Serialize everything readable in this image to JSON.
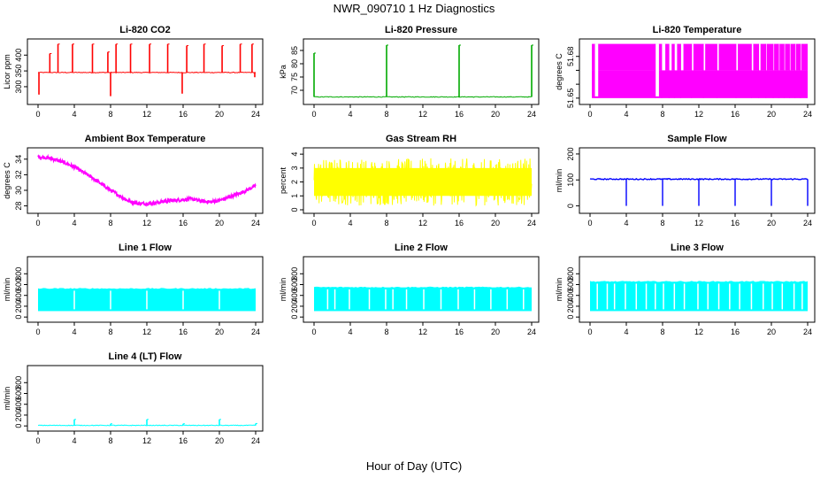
{
  "figure": {
    "title": "NWR_090710  1 Hz Diagnostics",
    "xlabel": "Hour of Day (UTC)"
  },
  "chart_data": [
    {
      "type": "line",
      "title": "Li-820 CO2",
      "ylabel": "Licor ppm",
      "color": "#ff0000",
      "xlim": [
        0,
        24
      ],
      "ylim": [
        255,
        440
      ],
      "xticks": [
        "0",
        "4",
        "8",
        "12",
        "16",
        "20",
        "24"
      ],
      "yticks": [
        300,
        350,
        400
      ],
      "baseline": 345,
      "spikes_up": [
        [
          1.3,
          405
        ],
        [
          2.2,
          435
        ],
        [
          3.8,
          435
        ],
        [
          6.0,
          435
        ],
        [
          7.7,
          410
        ],
        [
          8.6,
          435
        ],
        [
          10.2,
          435
        ],
        [
          12.3,
          435
        ],
        [
          14.3,
          435
        ],
        [
          16.4,
          430
        ],
        [
          18.3,
          435
        ],
        [
          20.3,
          430
        ],
        [
          22.3,
          435
        ],
        [
          23.6,
          435
        ]
      ],
      "spikes_down": [
        [
          0.1,
          275
        ],
        [
          8.0,
          270
        ],
        [
          15.9,
          278
        ],
        [
          23.9,
          330
        ]
      ]
    },
    {
      "type": "line",
      "title": "Li-820 Pressure",
      "ylabel": "kPa",
      "color": "#00aa00",
      "xlim": [
        0,
        24
      ],
      "ylim": [
        66,
        88
      ],
      "xticks": [
        "0",
        "4",
        "8",
        "12",
        "16",
        "20",
        "24"
      ],
      "yticks": [
        70,
        75,
        80,
        85
      ],
      "baseline": 67.5,
      "spikes_up": [
        [
          0.0,
          84
        ],
        [
          8.0,
          87
        ],
        [
          16.0,
          87
        ],
        [
          24.0,
          87
        ]
      ],
      "spikes_down": []
    },
    {
      "type": "line",
      "title": "Li-820 Temperature",
      "ylabel": "degrees C",
      "color": "#ff00ff",
      "xlim": [
        0,
        24
      ],
      "ylim": [
        51.648,
        51.69
      ],
      "xticks": [
        "0",
        "4",
        "8",
        "12",
        "16",
        "20",
        "24"
      ],
      "yticks": [
        51.65,
        51.66,
        51.67,
        51.68
      ],
      "y_label_indices": [
        0,
        3
      ],
      "level_low": 51.65,
      "level_mid": 51.67,
      "level_high": 51.689,
      "band_start": 0.2,
      "band_end": 24,
      "full_until": 7.2,
      "gaps": [
        [
          0.5,
          0.9
        ],
        [
          7.2,
          7.6
        ],
        [
          7.9,
          8.3
        ],
        [
          8.7,
          9.0
        ],
        [
          9.3,
          9.6
        ],
        [
          10.0,
          10.3
        ],
        [
          11.2,
          11.4
        ],
        [
          12.5,
          12.7
        ],
        [
          14.0,
          14.2
        ],
        [
          16.1,
          16.3
        ],
        [
          17.8,
          18.0
        ],
        [
          18.6,
          18.8
        ],
        [
          19.4,
          19.5
        ],
        [
          20.2,
          20.3
        ],
        [
          20.8,
          20.9
        ],
        [
          21.4,
          21.5
        ],
        [
          22.0,
          22.1
        ],
        [
          22.6,
          22.7
        ],
        [
          23.2,
          23.3
        ]
      ]
    },
    {
      "type": "line",
      "title": "Ambient Box Temperature",
      "ylabel": "degrees C",
      "color": "#ff00ff",
      "xlim": [
        0,
        24
      ],
      "ylim": [
        27.5,
        35
      ],
      "xticks": [
        "0",
        "4",
        "8",
        "12",
        "16",
        "20",
        "24"
      ],
      "yticks": [
        28,
        30,
        32,
        34
      ],
      "x": [
        0,
        1,
        2,
        3,
        4,
        5,
        6,
        7,
        8,
        9,
        10,
        11,
        12,
        13,
        14,
        15,
        16,
        17,
        18,
        19,
        20,
        21,
        22,
        23,
        24
      ],
      "y": [
        34.3,
        34.2,
        33.9,
        33.5,
        33.0,
        32.3,
        31.6,
        30.8,
        30.0,
        29.3,
        28.6,
        28.3,
        28.3,
        28.4,
        28.6,
        28.7,
        28.8,
        28.9,
        28.6,
        28.5,
        28.7,
        29.1,
        29.5,
        30.0,
        30.6
      ],
      "noise": 0.45
    },
    {
      "type": "line",
      "title": "Gas Stream RH",
      "ylabel": "percent",
      "color": "#ffff00",
      "xlim": [
        0,
        24
      ],
      "ylim": [
        0,
        4.2
      ],
      "xticks": [
        "0",
        "4",
        "8",
        "12",
        "16",
        "20",
        "24"
      ],
      "yticks": [
        0,
        1,
        2,
        3,
        4
      ],
      "band_low": 0.3,
      "band_high": 3.7,
      "core_low": 1.0,
      "core_high": 3.0
    },
    {
      "type": "line",
      "title": "Sample Flow",
      "ylabel": "ml/min",
      "color": "#0000ff",
      "xlim": [
        0,
        24
      ],
      "ylim": [
        -15,
        210
      ],
      "xticks": [
        "0",
        "4",
        "8",
        "12",
        "16",
        "20",
        "24"
      ],
      "yticks": [
        0,
        100,
        200
      ],
      "baseline": 103,
      "spikes_down": [
        [
          4.0,
          0
        ],
        [
          8.0,
          0
        ],
        [
          12.0,
          0
        ],
        [
          16.0,
          0
        ],
        [
          20.0,
          0
        ],
        [
          24.0,
          0
        ]
      ]
    },
    {
      "type": "line",
      "title": "Line 1 Flow",
      "ylabel": "ml/min",
      "color": "#00ffff",
      "xlim": [
        0,
        24
      ],
      "ylim": [
        -30,
        1050
      ],
      "xticks": [
        "0",
        "4",
        "8",
        "12",
        "16",
        "20",
        "24"
      ],
      "yticks": [
        0,
        200,
        400,
        600,
        800
      ],
      "band_low": 110,
      "band_high": 520,
      "band_end": 24,
      "gaps": [
        4.0,
        8.0,
        12.0,
        16.0,
        20.0
      ]
    },
    {
      "type": "line",
      "title": "Line 2 Flow",
      "ylabel": "ml/min",
      "color": "#00ffff",
      "xlim": [
        0,
        24
      ],
      "ylim": [
        -30,
        1050
      ],
      "xticks": [
        "0",
        "4",
        "8",
        "12",
        "16",
        "20",
        "24"
      ],
      "yticks": [
        0,
        200,
        400,
        600,
        800
      ],
      "band_low": 110,
      "band_high": 545,
      "band_end": 24,
      "gaps": [
        1.5,
        2.3,
        3.9,
        6.1,
        7.9,
        8.7,
        10.2,
        12.1,
        14.0,
        15.9,
        17.7,
        19.5,
        21.3,
        23.1
      ]
    },
    {
      "type": "line",
      "title": "Line 3 Flow",
      "ylabel": "ml/min",
      "color": "#00ffff",
      "xlim": [
        0,
        24
      ],
      "ylim": [
        -30,
        1050
      ],
      "xticks": [
        "0",
        "4",
        "8",
        "12",
        "16",
        "20",
        "24"
      ],
      "yticks": [
        0,
        200,
        400,
        600,
        800
      ],
      "band_low": 110,
      "band_high": 650,
      "band_end": 24,
      "gaps": [
        0.8,
        1.9,
        2.7,
        3.9,
        5.1,
        6.2,
        7.2,
        8.1,
        9.3,
        10.4,
        11.9,
        13.0,
        14.2,
        15.4,
        16.5,
        17.8,
        19.1,
        20.1,
        21.2,
        22.5,
        23.4
      ]
    },
    {
      "type": "line",
      "title": "Line 4 (LT) Flow",
      "ylabel": "ml/min",
      "color": "#00ffff",
      "xlim": [
        0,
        24
      ],
      "ylim": [
        -30,
        1050
      ],
      "xticks": [
        "0",
        "4",
        "8",
        "12",
        "16",
        "20",
        "24"
      ],
      "yticks": [
        0,
        200,
        400,
        600,
        800
      ],
      "baseline": 10,
      "spikes_up": [
        [
          4.0,
          120
        ],
        [
          8.0,
          40
        ],
        [
          12.0,
          120
        ],
        [
          16.0,
          40
        ],
        [
          20.0,
          120
        ],
        [
          24.0,
          45
        ]
      ]
    }
  ]
}
